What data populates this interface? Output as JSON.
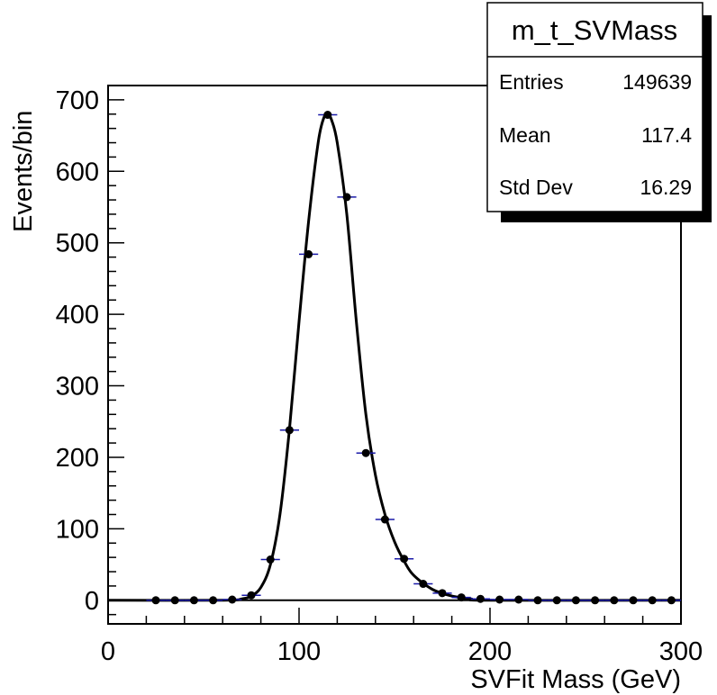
{
  "chart_data": {
    "type": "scatter",
    "xlabel": "SVFit Mass (GeV)",
    "ylabel": "Events/bin",
    "xlim": [
      0,
      300
    ],
    "ylim": [
      -33,
      720
    ],
    "x_ticks": [
      "0",
      "100",
      "200",
      "300"
    ],
    "y_ticks": [
      "0",
      "100",
      "200",
      "300",
      "400",
      "500",
      "600",
      "700"
    ],
    "grid": false,
    "legend": "top-right stats box",
    "bin_width": 10,
    "series": [
      {
        "x": [
          25,
          35,
          45,
          55,
          65,
          75,
          85,
          95,
          105,
          115,
          125,
          135,
          145,
          155,
          165,
          175,
          185,
          195,
          205,
          215,
          225,
          235,
          245,
          255,
          265,
          275,
          285,
          295
        ],
        "y": [
          0,
          0,
          0,
          0,
          1,
          7,
          57,
          238,
          484,
          679,
          564,
          206,
          113,
          58,
          23,
          10,
          4,
          2,
          1,
          1,
          0,
          0,
          0,
          0,
          0,
          0,
          0,
          0
        ]
      }
    ],
    "fit_curve": {
      "x": [
        0,
        60,
        70,
        75,
        80,
        85,
        90,
        95,
        100,
        105,
        110,
        113,
        115,
        117,
        120,
        125,
        130,
        135,
        140,
        145,
        150,
        155,
        160,
        170,
        180,
        190,
        200,
        300
      ],
      "y": [
        0,
        0,
        2,
        6,
        18,
        50,
        120,
        240,
        390,
        530,
        640,
        675,
        680,
        672,
        640,
        540,
        390,
        260,
        175,
        120,
        82,
        55,
        35,
        15,
        6,
        2,
        0,
        0
      ]
    },
    "stats_box": {
      "title": "m_t_SVMass",
      "rows": [
        {
          "label": "Entries",
          "value": "149639"
        },
        {
          "label": "Mean",
          "value": "117.4"
        },
        {
          "label": "Std Dev",
          "value": "16.29"
        }
      ]
    }
  }
}
